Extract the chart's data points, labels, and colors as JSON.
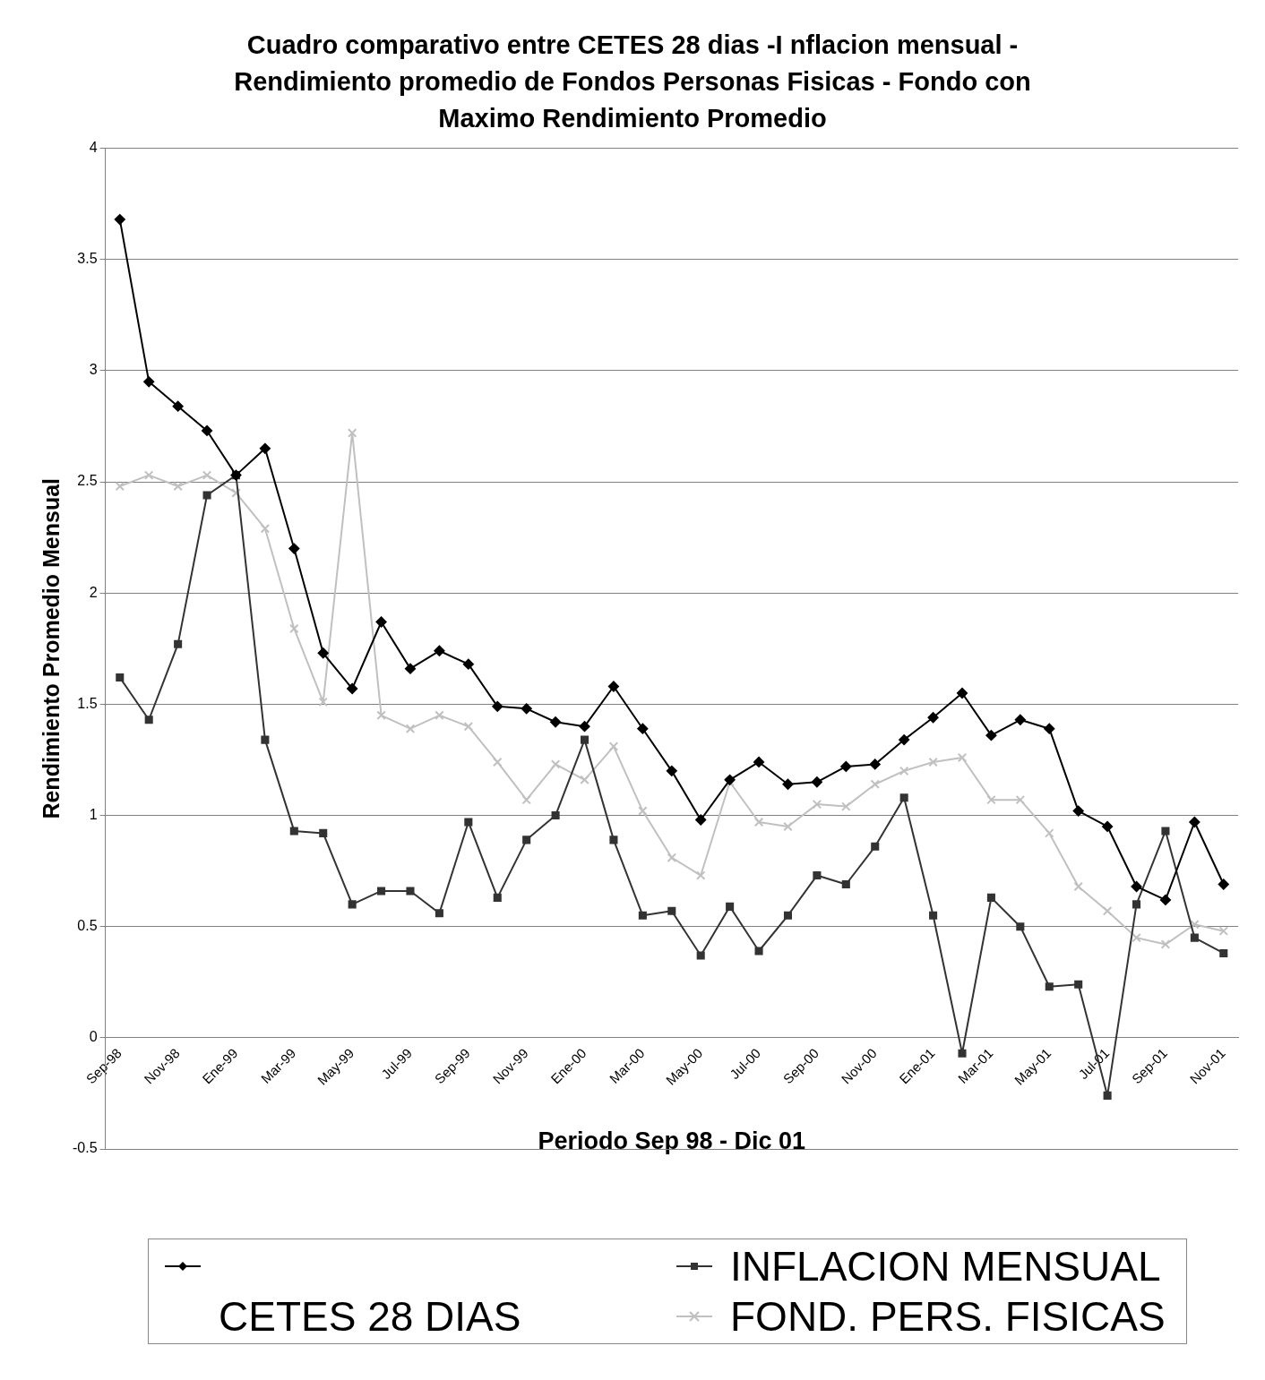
{
  "chart_data": {
    "type": "line",
    "title": "Cuadro comparativo entre CETES 28 dias -I nflacion mensual - Rendimiento promedio de Fondos Personas Fisicas - Fondo con Maximo Rendimiento Promedio",
    "xlabel": "Periodo Sep 98 - Dic 01",
    "ylabel": "Rendimiento Promedio Mensual",
    "categories": [
      "Sep-98",
      null,
      "Nov-98",
      null,
      "Ene-99",
      null,
      "Mar-99",
      null,
      "May-99",
      null,
      "Jul-99",
      null,
      "Sep-99",
      null,
      "Nov-99",
      null,
      "Ene-00",
      null,
      "Mar-00",
      null,
      "May-00",
      null,
      "Jul-00",
      null,
      "Sep-00",
      null,
      "Nov-00",
      null,
      "Ene-01",
      null,
      "Mar-01",
      null,
      "May-01",
      null,
      "Jul-01",
      null,
      "Sep-01",
      null,
      "Nov-01"
    ],
    "series": [
      {
        "color": "#000000",
        "marker": "diamond",
        "values": [
          3.68,
          2.95,
          2.84,
          2.73,
          2.53,
          2.65,
          2.2,
          1.73,
          1.57,
          1.87,
          1.66,
          1.74,
          1.68,
          1.49,
          1.48,
          1.42,
          1.4,
          1.58,
          1.39,
          1.2,
          0.98,
          1.16,
          1.24,
          1.14,
          1.15,
          1.22,
          1.23,
          1.34,
          1.44,
          1.55,
          1.36,
          1.43,
          1.39,
          1.02,
          0.95,
          0.68,
          0.62,
          0.97,
          0.69
        ]
      },
      {
        "name": "INFLACION MENSUAL",
        "color": "#333333",
        "marker": "square",
        "values": [
          1.62,
          1.43,
          1.77,
          2.44,
          2.53,
          1.34,
          0.93,
          0.92,
          0.6,
          0.66,
          0.66,
          0.56,
          0.97,
          0.63,
          0.89,
          1.0,
          1.34,
          0.89,
          0.55,
          0.57,
          0.37,
          0.59,
          0.39,
          0.55,
          0.73,
          0.69,
          0.86,
          1.08,
          0.55,
          -0.07,
          0.63,
          0.5,
          0.23,
          0.24,
          -0.26,
          0.6,
          0.93,
          0.45,
          0.38
        ]
      },
      {
        "name": "CETES 28 DIAS",
        "marker": "none",
        "values": [
          null,
          null,
          null,
          null,
          null,
          null,
          null,
          null,
          null,
          null,
          null,
          null,
          null,
          null,
          null,
          null,
          null,
          null,
          null,
          null,
          null,
          null,
          null,
          null,
          null,
          null,
          null,
          null,
          null,
          null,
          null,
          null,
          null,
          null,
          null,
          null,
          null,
          null,
          null
        ]
      },
      {
        "name": "FOND. PERS. FISICAS",
        "color": "#c0c0c0",
        "marker": "cross",
        "values": [
          2.48,
          2.53,
          2.48,
          2.53,
          2.45,
          2.29,
          1.84,
          1.51,
          2.72,
          1.45,
          1.39,
          1.45,
          1.4,
          1.24,
          1.07,
          1.23,
          1.16,
          1.31,
          1.02,
          0.81,
          0.73,
          1.15,
          0.97,
          0.95,
          1.05,
          1.04,
          1.14,
          1.2,
          1.24,
          1.26,
          1.07,
          1.07,
          0.92,
          0.68,
          0.57,
          0.45,
          0.42,
          0.51,
          0.48
        ]
      }
    ],
    "ylim": [
      -0.5,
      4
    ],
    "yticks": [
      -0.5,
      0,
      0.5,
      1,
      1.5,
      2,
      2.5,
      3,
      3.5,
      4
    ],
    "grid": "y",
    "legend": "bottom"
  }
}
